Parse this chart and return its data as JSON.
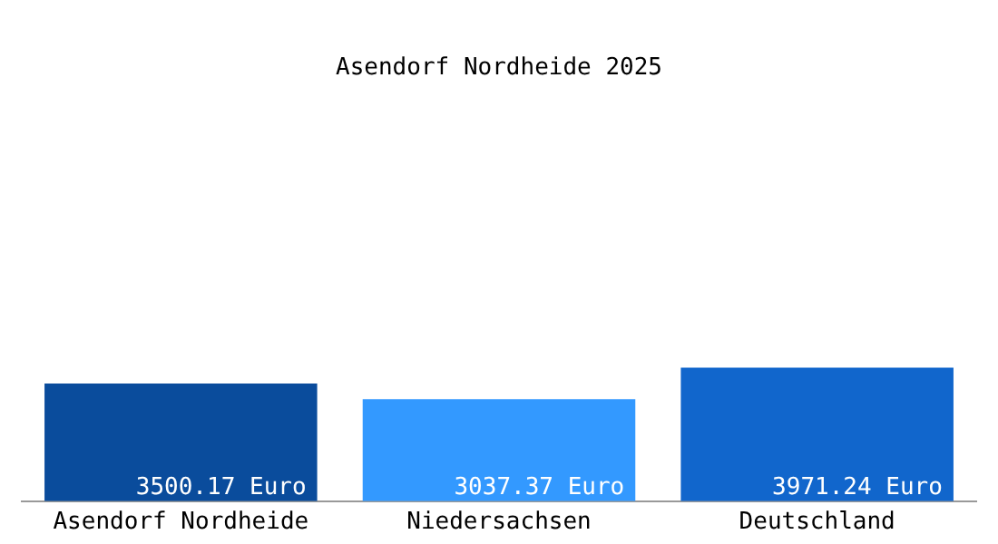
{
  "chart_data": {
    "type": "bar",
    "title": "Asendorf Nordheide 2025",
    "categories": [
      "Asendorf Nordheide",
      "Niedersachsen",
      "Deutschland"
    ],
    "values": [
      3500.17,
      3037.37,
      3971.24
    ],
    "colors": [
      "#0a4c9c",
      "#3399ff",
      "#1166cc"
    ],
    "value_labels": [
      "3500.17 Euro",
      "3037.37 Euro",
      "3971.24 Euro"
    ],
    "grid": false,
    "legend": false
  }
}
